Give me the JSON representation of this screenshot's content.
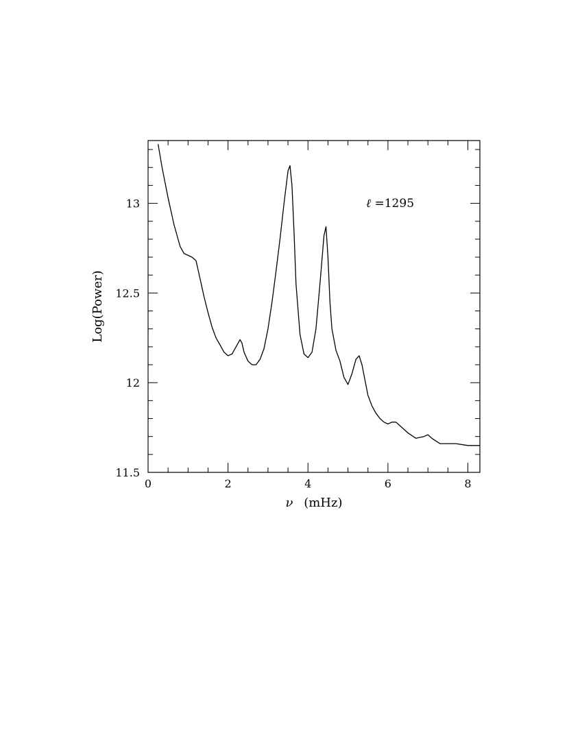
{
  "chart_data": {
    "type": "line",
    "title": "",
    "xlabel": {
      "symbol": "ν",
      "unit": "(mHz)"
    },
    "ylabel": "Log(Power)",
    "xlim": [
      0,
      8.3
    ],
    "ylim": [
      11.5,
      13.35
    ],
    "x_ticks": [
      0,
      2,
      4,
      6,
      8
    ],
    "x_tick_labels": [
      "0",
      "2",
      "4",
      "6",
      "8"
    ],
    "y_ticks": [
      11.5,
      12,
      12.5,
      13
    ],
    "y_tick_labels": [
      "11.5",
      "12",
      "12.5",
      "13"
    ],
    "grid": false,
    "legend": "none",
    "annotation": {
      "symbol": "ℓ",
      "text": "=1295"
    },
    "line_color": "#000000",
    "series": [
      {
        "x": [
          0.25,
          0.35,
          0.5,
          0.65,
          0.8,
          0.9,
          1.0,
          1.1,
          1.2,
          1.3,
          1.4,
          1.5,
          1.6,
          1.7,
          1.8,
          1.9,
          2.0,
          2.1,
          2.2,
          2.3,
          2.35,
          2.4,
          2.5,
          2.6,
          2.7,
          2.8,
          2.9,
          3.0,
          3.1,
          3.2,
          3.3,
          3.4,
          3.5,
          3.55,
          3.6,
          3.65,
          3.7,
          3.8,
          3.9,
          4.0,
          4.1,
          4.2,
          4.3,
          4.4,
          4.45,
          4.5,
          4.55,
          4.6,
          4.7,
          4.8,
          4.9,
          5.0,
          5.1,
          5.2,
          5.28,
          5.35,
          5.5,
          5.6,
          5.7,
          5.8,
          5.9,
          6.0,
          6.1,
          6.2,
          6.3,
          6.5,
          6.7,
          6.9,
          7.0,
          7.1,
          7.3,
          7.5,
          7.7,
          8.0,
          8.3
        ],
        "y": [
          13.33,
          13.2,
          13.03,
          12.88,
          12.76,
          12.72,
          12.71,
          12.7,
          12.68,
          12.58,
          12.48,
          12.39,
          12.31,
          12.25,
          12.21,
          12.17,
          12.15,
          12.16,
          12.2,
          12.24,
          12.22,
          12.17,
          12.12,
          12.1,
          12.1,
          12.13,
          12.19,
          12.3,
          12.45,
          12.62,
          12.8,
          13.0,
          13.18,
          13.21,
          13.1,
          12.85,
          12.55,
          12.27,
          12.16,
          12.14,
          12.17,
          12.3,
          12.55,
          12.82,
          12.87,
          12.7,
          12.45,
          12.3,
          12.18,
          12.12,
          12.03,
          11.99,
          12.05,
          12.13,
          12.15,
          12.1,
          11.93,
          11.87,
          11.83,
          11.8,
          11.78,
          11.77,
          11.78,
          11.78,
          11.76,
          11.72,
          11.69,
          11.7,
          11.71,
          11.69,
          11.66,
          11.66,
          11.66,
          11.65,
          11.65
        ]
      }
    ]
  }
}
